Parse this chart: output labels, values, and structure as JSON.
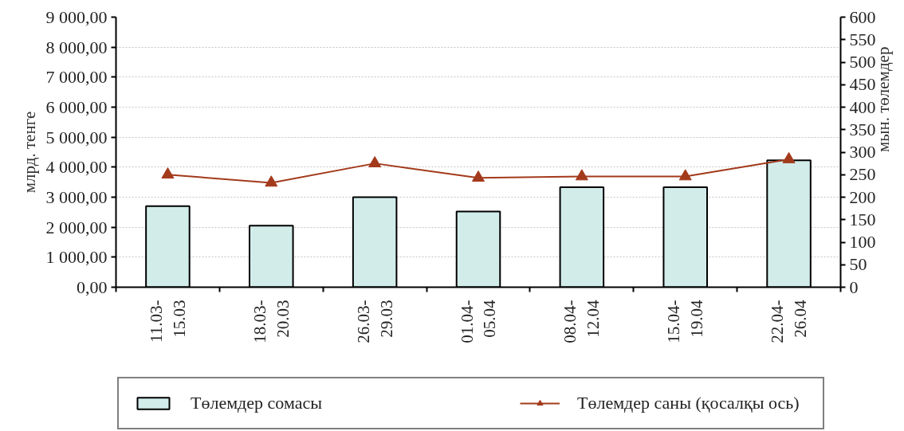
{
  "chart_data": {
    "type": "bar",
    "categories": [
      "11.03-15.03",
      "18.03-20.03",
      "26.03-29.03",
      "01.04-05.04",
      "08.04-12.04",
      "15.04-19.04",
      "22.04-26.04"
    ],
    "ylabel": "млрд. тенге",
    "y2label": "мын. төлемдер",
    "ylim": [
      0,
      9000
    ],
    "yticks": [
      {
        "value": 0,
        "label": "0,00"
      },
      {
        "value": 1000,
        "label": "1 000,00"
      },
      {
        "value": 2000,
        "label": "2 000,00"
      },
      {
        "value": 3000,
        "label": "3 000,00"
      },
      {
        "value": 4000,
        "label": "4 000,00"
      },
      {
        "value": 5000,
        "label": "5 000,00"
      },
      {
        "value": 6000,
        "label": "6 000,00"
      },
      {
        "value": 7000,
        "label": "7 000,00"
      },
      {
        "value": 8000,
        "label": "8 000,00"
      },
      {
        "value": 9000,
        "label": "9 000,00"
      }
    ],
    "y2lim": [
      0,
      600
    ],
    "y2ticks": [
      0,
      50,
      100,
      150,
      200,
      250,
      300,
      350,
      400,
      450,
      500,
      550,
      600
    ],
    "grid": "y",
    "legend": "bottom",
    "series": [
      {
        "name": "Төлемдер сомасы",
        "color": "#d2ecea",
        "values": [
          2700,
          2050,
          3000,
          2520,
          3330,
          3330,
          4230
        ]
      },
      {
        "name": "Төлемдер саны (қосалқы ось)",
        "type": "line",
        "axis": "y2",
        "marker": "triangle",
        "color": "#a33a1c",
        "values": [
          250,
          232,
          275,
          243,
          246,
          246,
          284
        ]
      }
    ]
  }
}
